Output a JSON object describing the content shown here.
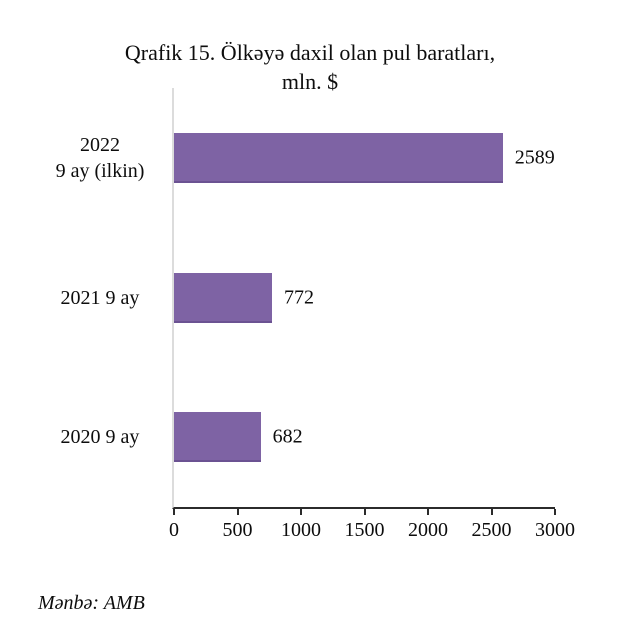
{
  "title": {
    "line1": "Qrafik 15. Ölkəyə daxil olan pul baratları,",
    "line2": "mln. $"
  },
  "source": "Mənbə: AMB",
  "chart_data": {
    "type": "bar",
    "orientation": "horizontal",
    "title": "Qrafik 15. Ölkəyə daxil olan pul baratları, mln. $",
    "categories": [
      "2022\n9 ay (ilkin)",
      "2021 9 ay",
      "2020 9 ay"
    ],
    "values": [
      2589,
      772,
      682
    ],
    "xlabel": "",
    "ylabel": "",
    "xlim": [
      0,
      3000
    ],
    "xticks": [
      0,
      500,
      1000,
      1500,
      2000,
      2500,
      3000
    ],
    "bar_color": "#7E63A4",
    "grid": false,
    "legend": false,
    "data_labels": true
  }
}
